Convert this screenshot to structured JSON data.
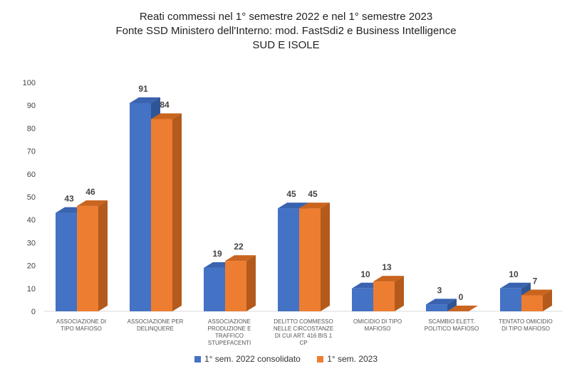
{
  "chart_data": {
    "type": "bar",
    "title": "Reati commessi nel 1° semestre 2022 e nel 1° semestre 2023",
    "subtitle": "Fonte SSD Ministero dell'Interno: mod. FastSdi2 e Business Intelligence",
    "subtitle2": "SUD E ISOLE",
    "categories": [
      [
        "ASSOCIAZIONE DI",
        "TIPO MAFIOSO"
      ],
      [
        "ASSOCIAZIONE PER",
        "DELINQUERE"
      ],
      [
        "ASSOCIAZIONE",
        "PRODUZIONE E",
        "TRAFFICO",
        "STUPEFACENTI"
      ],
      [
        "DELITTO COMMESSO",
        "NELLE CIRCOSTANZE",
        "DI CUI ART. 416 BIS 1",
        "CP"
      ],
      [
        "OMICIDIO DI TIPO",
        "MAFIOSO"
      ],
      [
        "SCAMBIO ELETT.",
        "POLITICO MAFIOSO"
      ],
      [
        "TENTATO OMICIDIO",
        "DI TIPO MAFIOSO"
      ]
    ],
    "series": [
      {
        "name": "1° sem. 2022 consolidato",
        "values": [
          43,
          91,
          19,
          45,
          10,
          3,
          10
        ],
        "color": "#4472C4",
        "side_color": "#2F5597",
        "top_color": "#3A63B0"
      },
      {
        "name": "1° sem. 2023",
        "values": [
          46,
          84,
          22,
          45,
          13,
          0,
          7
        ],
        "color": "#ED7D31",
        "side_color": "#B45A1C",
        "top_color": "#C9651F"
      }
    ],
    "ylim": [
      0,
      100
    ],
    "yticks": [
      "0",
      "10",
      "20",
      "30",
      "40",
      "50",
      "60",
      "70",
      "80",
      "90",
      "100"
    ],
    "legend_position": "bottom",
    "grid": false
  }
}
